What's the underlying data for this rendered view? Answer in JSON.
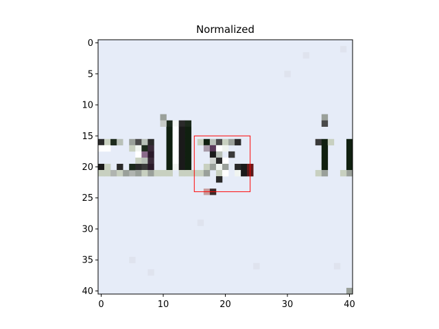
{
  "chart_data": {
    "type": "heatmap",
    "title": "Normalized",
    "xlabel": "",
    "ylabel": "",
    "grid_size": [
      41,
      41
    ],
    "xlim": [
      -0.5,
      40.5
    ],
    "ylim": [
      40.5,
      -0.5
    ],
    "x_ticks": [
      0,
      10,
      20,
      30,
      40
    ],
    "y_ticks": [
      0,
      5,
      10,
      15,
      20,
      25,
      30,
      35,
      40
    ],
    "background_color": "#e6ecf8",
    "highlight_box": {
      "x0": 15,
      "x1": 24,
      "y0": 15,
      "y1": 24,
      "color": "#ff0000"
    },
    "pixels": [
      {
        "x": 11,
        "y": 13,
        "c": "#1c2a1c"
      },
      {
        "x": 11,
        "y": 14,
        "c": "#102010"
      },
      {
        "x": 11,
        "y": 15,
        "c": "#102010"
      },
      {
        "x": 11,
        "y": 16,
        "c": "#102010"
      },
      {
        "x": 11,
        "y": 17,
        "c": "#102010"
      },
      {
        "x": 11,
        "y": 18,
        "c": "#102010"
      },
      {
        "x": 11,
        "y": 19,
        "c": "#102010"
      },
      {
        "x": 11,
        "y": 20,
        "c": "#102010"
      },
      {
        "x": 11,
        "y": 21,
        "c": "#c8d0c0"
      },
      {
        "x": 10,
        "y": 12,
        "c": "#9aa09a"
      },
      {
        "x": 10,
        "y": 13,
        "c": "#c8ccc8"
      },
      {
        "x": 12,
        "y": 13,
        "c": "#f4f6f4"
      },
      {
        "x": 12,
        "y": 14,
        "c": "#ffffff"
      },
      {
        "x": 12,
        "y": 15,
        "c": "#ffffff"
      },
      {
        "x": 12,
        "y": 16,
        "c": "#ffffff"
      },
      {
        "x": 12,
        "y": 17,
        "c": "#ffffff"
      },
      {
        "x": 12,
        "y": 18,
        "c": "#ffffff"
      },
      {
        "x": 12,
        "y": 19,
        "c": "#ffffff"
      },
      {
        "x": 12,
        "y": 20,
        "c": "#f4f6f4"
      },
      {
        "x": 13,
        "y": 13,
        "c": "#2a2a2a"
      },
      {
        "x": 13,
        "y": 14,
        "c": "#1a1a1a"
      },
      {
        "x": 13,
        "y": 15,
        "c": "#1a1a1a"
      },
      {
        "x": 13,
        "y": 16,
        "c": "#1a1a1a"
      },
      {
        "x": 13,
        "y": 17,
        "c": "#1a1a1a"
      },
      {
        "x": 13,
        "y": 18,
        "c": "#1a1a1a"
      },
      {
        "x": 13,
        "y": 19,
        "c": "#1a1a1a"
      },
      {
        "x": 13,
        "y": 20,
        "c": "#1a1a1a"
      },
      {
        "x": 13,
        "y": 21,
        "c": "#c8d0c0"
      },
      {
        "x": 14,
        "y": 13,
        "c": "#1c2a1c"
      },
      {
        "x": 14,
        "y": 14,
        "c": "#102010"
      },
      {
        "x": 14,
        "y": 15,
        "c": "#102010"
      },
      {
        "x": 14,
        "y": 16,
        "c": "#102010"
      },
      {
        "x": 14,
        "y": 17,
        "c": "#102010"
      },
      {
        "x": 14,
        "y": 18,
        "c": "#102010"
      },
      {
        "x": 14,
        "y": 19,
        "c": "#102010"
      },
      {
        "x": 14,
        "y": 20,
        "c": "#102010"
      },
      {
        "x": 14,
        "y": 21,
        "c": "#c8d0c0"
      },
      {
        "x": 0,
        "y": 16,
        "c": "#2a2a2a"
      },
      {
        "x": 1,
        "y": 16,
        "c": "#c8d0c0"
      },
      {
        "x": 2,
        "y": 16,
        "c": "#1c2a1c"
      },
      {
        "x": 3,
        "y": 16,
        "c": "#b8c0b8"
      },
      {
        "x": 0,
        "y": 17,
        "c": "#ffffff"
      },
      {
        "x": 1,
        "y": 17,
        "c": "#ffffff"
      },
      {
        "x": 0,
        "y": 20,
        "c": "#1a1a1a"
      },
      {
        "x": 1,
        "y": 20,
        "c": "#c8d0c0"
      },
      {
        "x": 3,
        "y": 20,
        "c": "#2a2a2a"
      },
      {
        "x": 0,
        "y": 21,
        "c": "#c8d0c0"
      },
      {
        "x": 1,
        "y": 21,
        "c": "#c8d0c0"
      },
      {
        "x": 2,
        "y": 21,
        "c": "#b0b4b0"
      },
      {
        "x": 3,
        "y": 21,
        "c": "#c8d0c0"
      },
      {
        "x": 4,
        "y": 21,
        "c": "#9aa09a"
      },
      {
        "x": 5,
        "y": 21,
        "c": "#b0b4b0"
      },
      {
        "x": 5,
        "y": 16,
        "c": "#9aa09a"
      },
      {
        "x": 5,
        "y": 17,
        "c": "#c8d0c0"
      },
      {
        "x": 5,
        "y": 20,
        "c": "#1c2a1c"
      },
      {
        "x": 6,
        "y": 16,
        "c": "#4a4a4a"
      },
      {
        "x": 6,
        "y": 17,
        "c": "#f0f4f0"
      },
      {
        "x": 6,
        "y": 18,
        "c": "#ffffff"
      },
      {
        "x": 6,
        "y": 19,
        "c": "#c8d0c0"
      },
      {
        "x": 6,
        "y": 20,
        "c": "#2a2a2a"
      },
      {
        "x": 6,
        "y": 21,
        "c": "#9aa09a"
      },
      {
        "x": 7,
        "y": 16,
        "c": "#b8c0b8"
      },
      {
        "x": 7,
        "y": 17,
        "c": "#1c2a1c"
      },
      {
        "x": 7,
        "y": 18,
        "c": "#8a6a8a"
      },
      {
        "x": 7,
        "y": 19,
        "c": "#b8c0b8"
      },
      {
        "x": 7,
        "y": 20,
        "c": "#3a3a3a"
      },
      {
        "x": 7,
        "y": 21,
        "c": "#c8d0c0"
      },
      {
        "x": 8,
        "y": 16,
        "c": "#2a2a2a"
      },
      {
        "x": 8,
        "y": 17,
        "c": "#3a2a3a"
      },
      {
        "x": 8,
        "y": 18,
        "c": "#2a1a2a"
      },
      {
        "x": 8,
        "y": 19,
        "c": "#3a2a3a"
      },
      {
        "x": 8,
        "y": 20,
        "c": "#2a1a2a"
      },
      {
        "x": 8,
        "y": 21,
        "c": "#9aa09a"
      },
      {
        "x": 9,
        "y": 21,
        "c": "#c8d0c0"
      },
      {
        "x": 10,
        "y": 21,
        "c": "#c8d0c0"
      },
      {
        "x": 15,
        "y": 21,
        "c": "#c8d0c0"
      },
      {
        "x": 16,
        "y": 16,
        "c": "#c8d0c0"
      },
      {
        "x": 17,
        "y": 16,
        "c": "#102010"
      },
      {
        "x": 18,
        "y": 16,
        "c": "#b8c0b8"
      },
      {
        "x": 19,
        "y": 16,
        "c": "#4a4a4a"
      },
      {
        "x": 20,
        "y": 16,
        "c": "#c8d0c0"
      },
      {
        "x": 21,
        "y": 16,
        "c": "#9aa09a"
      },
      {
        "x": 22,
        "y": 16,
        "c": "#2a2a2a"
      },
      {
        "x": 17,
        "y": 17,
        "c": "#a89aa8"
      },
      {
        "x": 18,
        "y": 17,
        "c": "#5a3a5a"
      },
      {
        "x": 19,
        "y": 17,
        "c": "#ffffff"
      },
      {
        "x": 20,
        "y": 17,
        "c": "#f0f4f0"
      },
      {
        "x": 18,
        "y": 18,
        "c": "#1a1a1a"
      },
      {
        "x": 19,
        "y": 18,
        "c": "#b8c0b8"
      },
      {
        "x": 21,
        "y": 18,
        "c": "#3a3a3a"
      },
      {
        "x": 18,
        "y": 19,
        "c": "#d0d4d0"
      },
      {
        "x": 19,
        "y": 19,
        "c": "#2a2a2a"
      },
      {
        "x": 20,
        "y": 19,
        "c": "#ffffff"
      },
      {
        "x": 17,
        "y": 20,
        "c": "#c8d0c0"
      },
      {
        "x": 18,
        "y": 20,
        "c": "#9aa09a"
      },
      {
        "x": 19,
        "y": 20,
        "c": "#f0f4f0"
      },
      {
        "x": 20,
        "y": 20,
        "c": "#9aa09a"
      },
      {
        "x": 22,
        "y": 20,
        "c": "#2a2a2a"
      },
      {
        "x": 23,
        "y": 20,
        "c": "#1a1a1a"
      },
      {
        "x": 24,
        "y": 20,
        "c": "#6a1a1a"
      },
      {
        "x": 22,
        "y": 21,
        "c": "#f0f4f0"
      },
      {
        "x": 23,
        "y": 21,
        "c": "#1a1a1a"
      },
      {
        "x": 24,
        "y": 21,
        "c": "#5a1a1a"
      },
      {
        "x": 16,
        "y": 21,
        "c": "#c8d0c0"
      },
      {
        "x": 17,
        "y": 21,
        "c": "#9aa09a"
      },
      {
        "x": 19,
        "y": 21,
        "c": "#c8d0c0"
      },
      {
        "x": 20,
        "y": 21,
        "c": "#ffffff"
      },
      {
        "x": 19,
        "y": 22,
        "c": "#2a2a2a"
      },
      {
        "x": 17,
        "y": 24,
        "c": "#c89a9a"
      },
      {
        "x": 18,
        "y": 24,
        "c": "#3a2a2a"
      },
      {
        "x": 36,
        "y": 12,
        "c": "#9aa09a"
      },
      {
        "x": 36,
        "y": 13,
        "c": "#4a4a4a"
      },
      {
        "x": 35,
        "y": 16,
        "c": "#3a3a3a"
      },
      {
        "x": 36,
        "y": 16,
        "c": "#102010"
      },
      {
        "x": 36,
        "y": 17,
        "c": "#102010"
      },
      {
        "x": 36,
        "y": 18,
        "c": "#102010"
      },
      {
        "x": 36,
        "y": 19,
        "c": "#102010"
      },
      {
        "x": 36,
        "y": 20,
        "c": "#102010"
      },
      {
        "x": 35,
        "y": 21,
        "c": "#c8d0c0"
      },
      {
        "x": 36,
        "y": 21,
        "c": "#9aa09a"
      },
      {
        "x": 37,
        "y": 16,
        "c": "#c8d0c0"
      },
      {
        "x": 40,
        "y": 16,
        "c": "#102010"
      },
      {
        "x": 40,
        "y": 17,
        "c": "#102010"
      },
      {
        "x": 40,
        "y": 18,
        "c": "#102010"
      },
      {
        "x": 40,
        "y": 19,
        "c": "#102010"
      },
      {
        "x": 40,
        "y": 20,
        "c": "#102010"
      },
      {
        "x": 40,
        "y": 21,
        "c": "#9aa09a"
      },
      {
        "x": 39,
        "y": 21,
        "c": "#c8d0c0"
      },
      {
        "x": 40,
        "y": 40,
        "c": "#9aa09a"
      },
      {
        "x": 16,
        "y": 29,
        "c": "#dfe3ee"
      },
      {
        "x": 30,
        "y": 5,
        "c": "#dfe3ee"
      },
      {
        "x": 5,
        "y": 35,
        "c": "#dfe3ee"
      },
      {
        "x": 25,
        "y": 36,
        "c": "#dfe3ee"
      },
      {
        "x": 8,
        "y": 37,
        "c": "#dfe3ee"
      },
      {
        "x": 38,
        "y": 36,
        "c": "#dfe3ee"
      },
      {
        "x": 33,
        "y": 2,
        "c": "#dfe3ee"
      },
      {
        "x": 39,
        "y": 1,
        "c": "#dfe3ee"
      }
    ]
  }
}
